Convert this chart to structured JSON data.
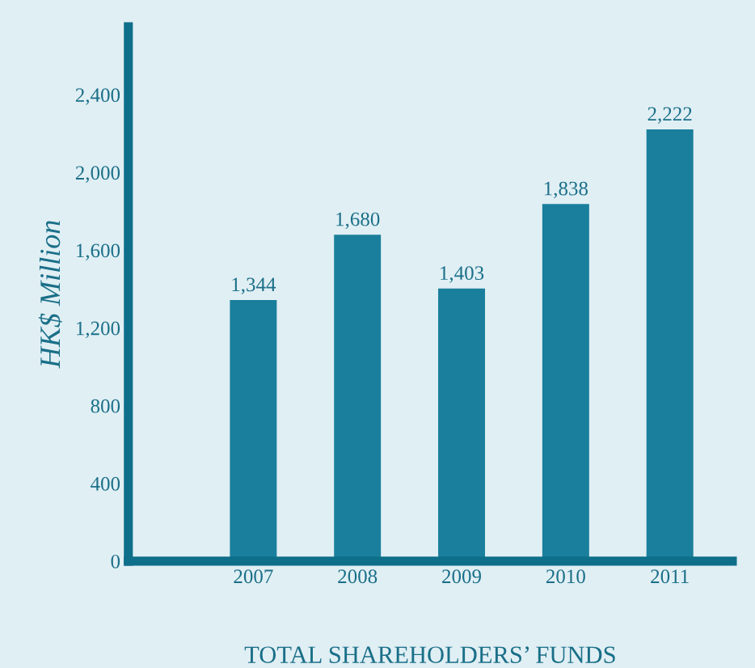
{
  "chart_data": {
    "type": "bar",
    "xlabel": "TOTAL SHAREHOLDERS’ FUNDS",
    "ylabel": "HK$ Million",
    "categories": [
      "2007",
      "2008",
      "2009",
      "2010",
      "2011"
    ],
    "values": [
      1344,
      1680,
      1403,
      1838,
      2222
    ],
    "value_labels": [
      "1,344",
      "1,680",
      "1,403",
      "1,838",
      "2,222"
    ],
    "color": "#1a7f9c",
    "ylim": [
      0,
      2750
    ],
    "yticks": [
      0,
      {
        "value": 400,
        "label": "400"
      },
      {
        "value": 800,
        "label": "800"
      },
      {
        "value": 1200,
        "label": "1,200"
      },
      {
        "value": 1600,
        "label": "1,600"
      },
      {
        "value": 2000,
        "label": "2,000"
      },
      {
        "value": 2400,
        "label": "2,400"
      }
    ],
    "grid": false,
    "legend": false
  }
}
